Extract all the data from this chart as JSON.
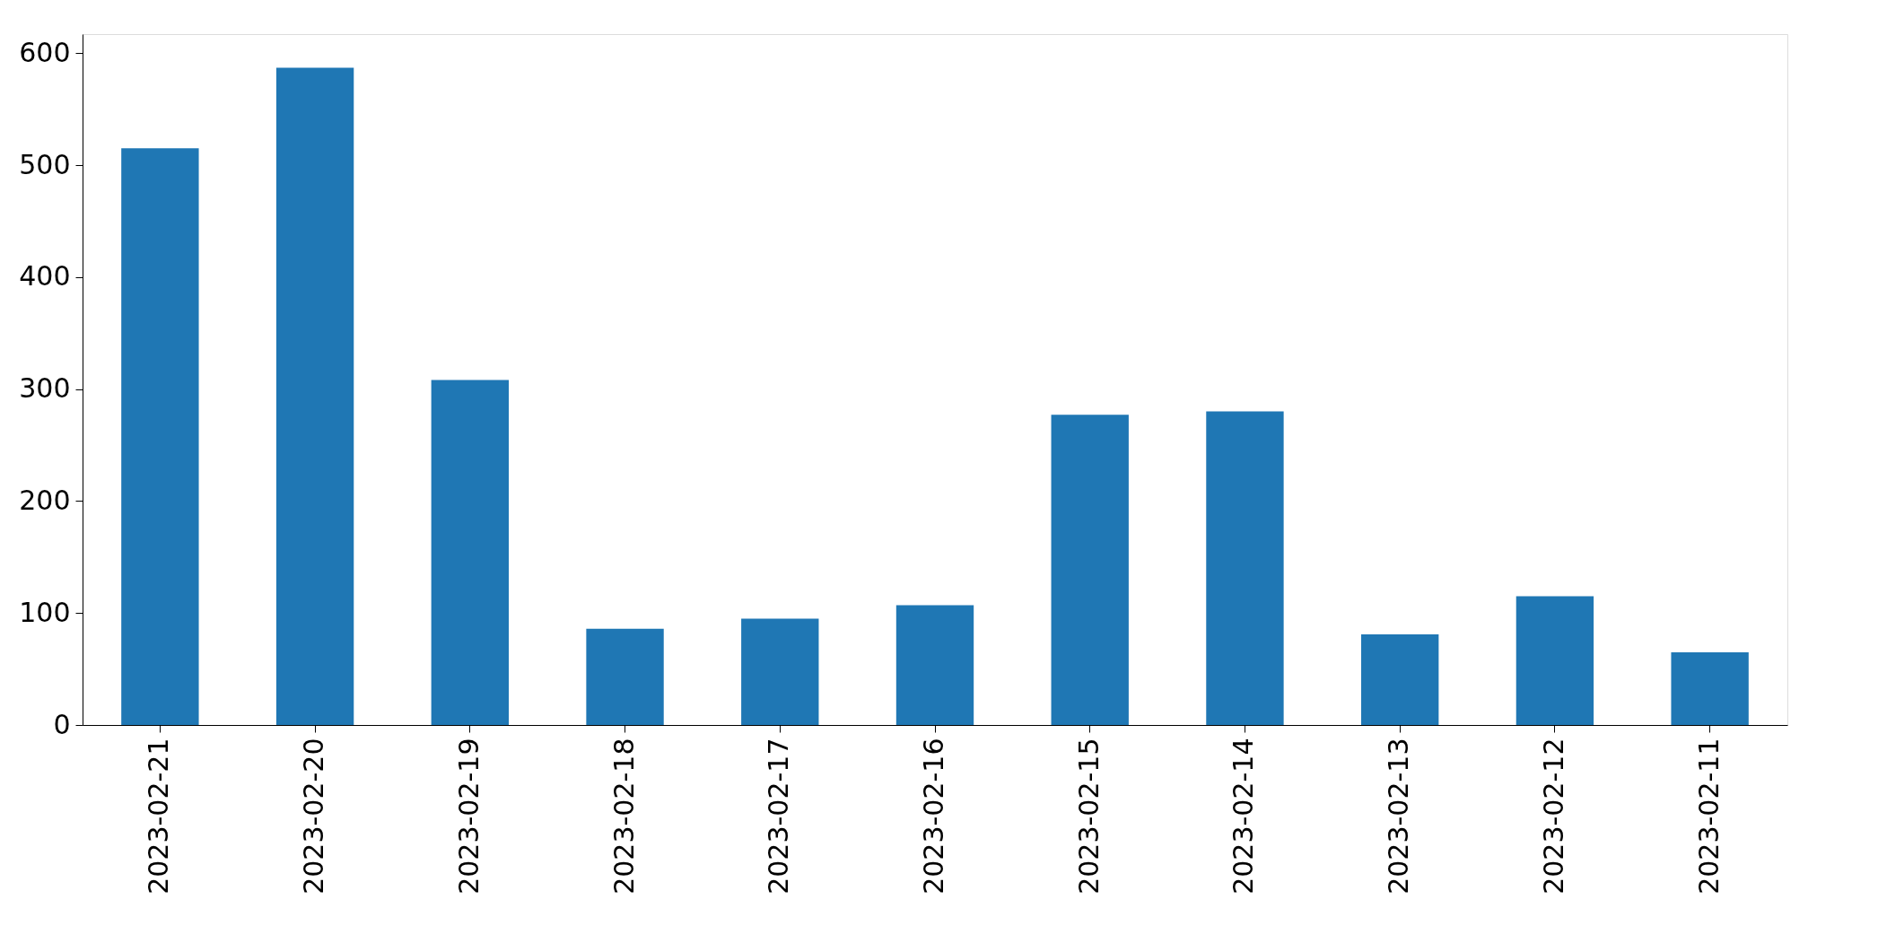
{
  "chart_data": {
    "type": "bar",
    "categories": [
      "2023-02-21",
      "2023-02-20",
      "2023-02-19",
      "2023-02-18",
      "2023-02-17",
      "2023-02-16",
      "2023-02-15",
      "2023-02-14",
      "2023-02-13",
      "2023-02-12",
      "2023-02-11"
    ],
    "values": [
      515,
      587,
      308,
      86,
      95,
      107,
      277,
      280,
      81,
      115,
      65
    ],
    "color": "#1f77b4",
    "ylim": [
      0,
      617
    ],
    "yticks": [
      0,
      100,
      200,
      300,
      400,
      500,
      600
    ],
    "grid": false
  }
}
